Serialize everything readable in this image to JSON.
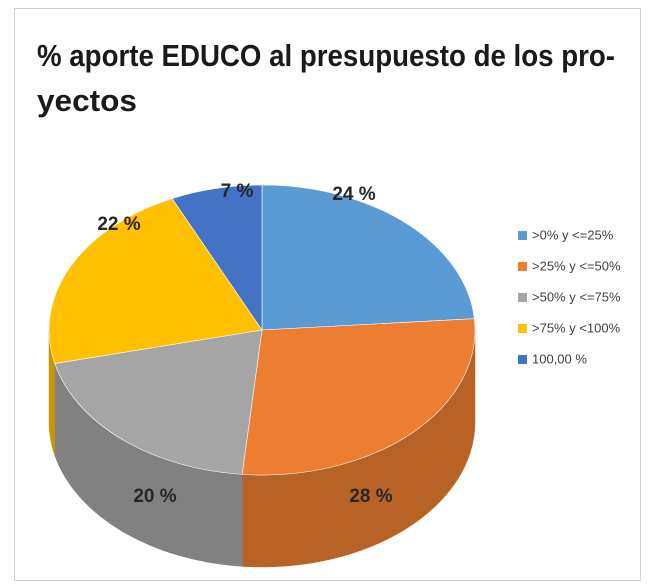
{
  "chart_data": {
    "type": "pie",
    "title": [
      "% aporte EDUCO al presupuesto de los  pro-",
      "yectos"
    ],
    "categories": [
      ">0% y <=25%",
      ">25% y <=50%",
      ">50% y <=75%",
      ">75% y <100%",
      "100,00 %"
    ],
    "values": [
      24,
      28,
      20,
      22,
      7
    ],
    "value_labels": [
      "24 %",
      "28 %",
      "20 %",
      "22 %",
      "7 %"
    ],
    "colors": [
      "#5b9bd5",
      "#ed7d31",
      "#a5a5a5",
      "#ffc000",
      "#4472c4"
    ],
    "legend": "right"
  }
}
